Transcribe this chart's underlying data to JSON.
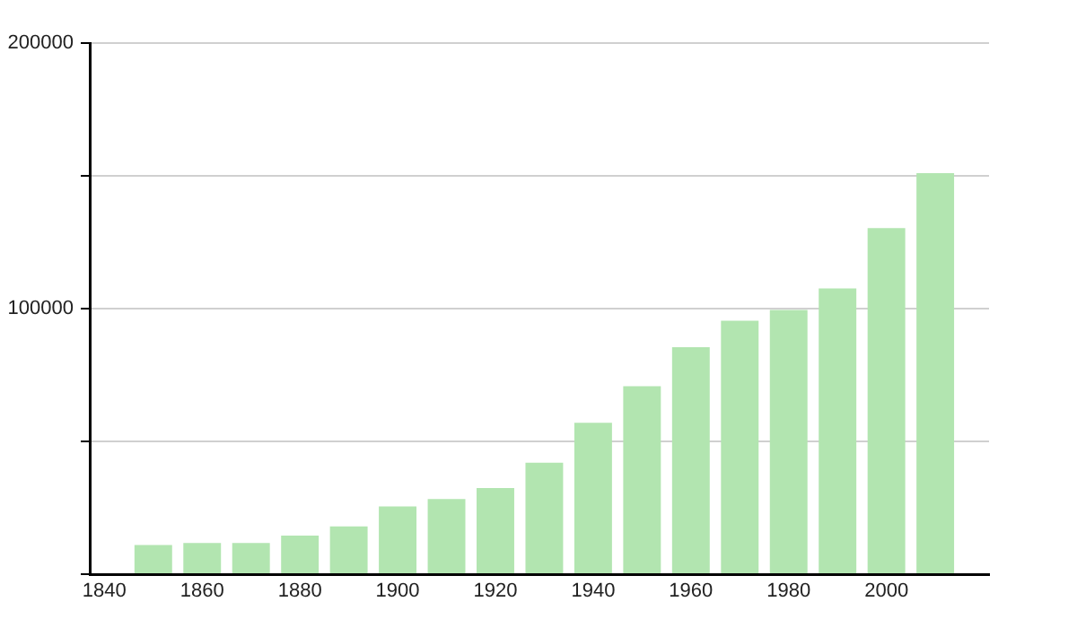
{
  "chart_data": {
    "type": "bar",
    "x": [
      1850,
      1860,
      1870,
      1880,
      1890,
      1900,
      1910,
      1920,
      1930,
      1940,
      1950,
      1960,
      1970,
      1980,
      1990,
      2000,
      2010
    ],
    "values": [
      11000,
      11700,
      11700,
      14500,
      18000,
      25500,
      28300,
      32400,
      42000,
      57000,
      70800,
      85500,
      95400,
      99500,
      107600,
      130300,
      151000
    ],
    "color": "#b2e5b0",
    "xlim": [
      1837,
      2021
    ],
    "xticks": [
      1840,
      1860,
      1880,
      1900,
      1920,
      1940,
      1960,
      1980,
      2000
    ],
    "ylim": [
      0,
      200000
    ],
    "yticks": [
      {
        "value": 0,
        "label": null
      },
      {
        "value": 50000,
        "label": null
      },
      100000,
      {
        "value": 150000,
        "label": null
      },
      200000
    ],
    "grid": "y",
    "legend": false
  }
}
